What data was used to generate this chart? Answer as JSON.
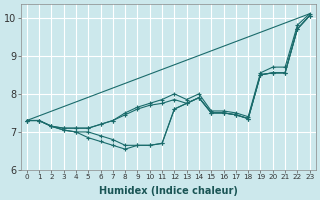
{
  "xlabel": "Humidex (Indice chaleur)",
  "bg_color": "#cce8ec",
  "grid_color": "#ffffff",
  "line_color": "#1a6b6b",
  "xlim": [
    -0.5,
    23.5
  ],
  "ylim": [
    6,
    10.35
  ],
  "yticks": [
    6,
    7,
    8,
    9,
    10
  ],
  "xticks": [
    0,
    1,
    2,
    3,
    4,
    5,
    6,
    7,
    8,
    9,
    10,
    11,
    12,
    13,
    14,
    15,
    16,
    17,
    18,
    19,
    20,
    21,
    22,
    23
  ],
  "series": [
    [
      7.3,
      7.3,
      7.15,
      7.1,
      7.1,
      7.1,
      7.2,
      7.3,
      7.5,
      7.65,
      7.75,
      7.85,
      8.0,
      7.85,
      8.0,
      7.55,
      7.55,
      7.5,
      7.4,
      8.55,
      8.7,
      8.7,
      9.8,
      10.1
    ],
    [
      7.3,
      7.3,
      7.15,
      7.1,
      7.1,
      7.1,
      7.2,
      7.3,
      7.45,
      7.6,
      7.7,
      7.75,
      7.85,
      7.75,
      7.9,
      7.5,
      7.5,
      7.45,
      7.35,
      8.5,
      8.55,
      8.55,
      9.7,
      10.05
    ],
    [
      7.3,
      7.3,
      7.15,
      7.05,
      7.0,
      6.85,
      6.75,
      6.65,
      6.55,
      6.65,
      6.65,
      6.7,
      7.6,
      7.75,
      7.9,
      7.5,
      7.5,
      7.45,
      7.35,
      8.5,
      8.55,
      8.55,
      9.7,
      10.05
    ],
    [
      7.3,
      7.3,
      7.15,
      7.05,
      7.0,
      7.0,
      6.9,
      6.8,
      6.65,
      6.65,
      6.65,
      6.7,
      7.6,
      7.75,
      7.9,
      7.5,
      7.5,
      7.45,
      7.35,
      8.5,
      8.55,
      8.55,
      9.7,
      10.05
    ],
    [
      7.3,
      null,
      null,
      null,
      null,
      null,
      null,
      null,
      null,
      null,
      null,
      null,
      null,
      null,
      null,
      null,
      null,
      null,
      null,
      null,
      null,
      null,
      null,
      10.1
    ]
  ]
}
